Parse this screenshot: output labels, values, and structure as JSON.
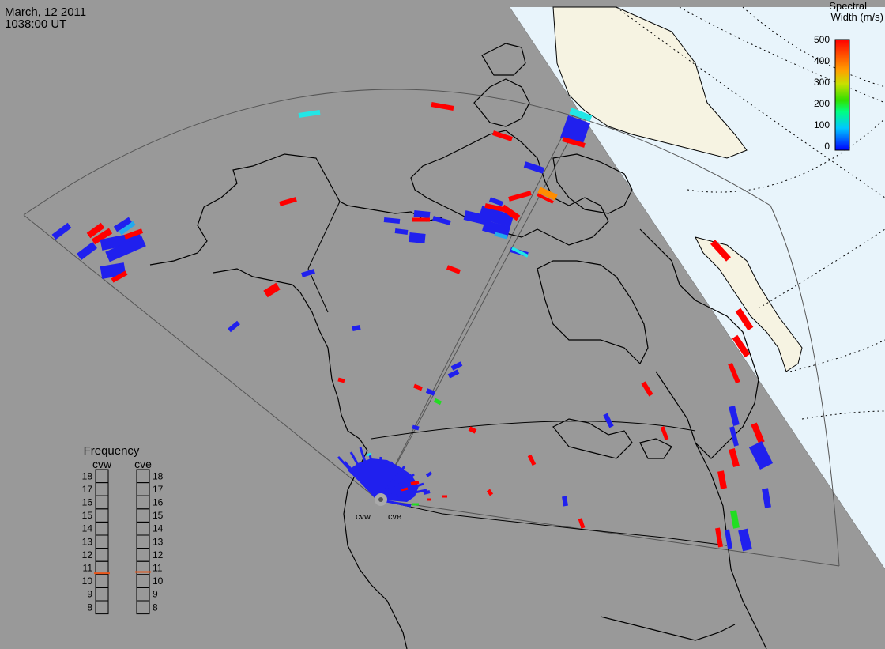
{
  "header": {
    "date": "March, 12 2011",
    "time": "1038:00 UT"
  },
  "colorbar": {
    "title_line1": "Spectral",
    "title_line2": "Width (m/s)",
    "ticks": [
      "500",
      "400",
      "300",
      "200",
      "100",
      "0"
    ]
  },
  "frequency": {
    "title": "Frequency",
    "radars": [
      {
        "name": "cvw",
        "value": 10.6
      },
      {
        "name": "cve",
        "value": 10.7
      }
    ],
    "ticks": [
      "18",
      "17",
      "16",
      "15",
      "14",
      "13",
      "12",
      "11",
      "10",
      "9",
      "8"
    ],
    "marker_color": "#e8561a"
  },
  "sites": [
    {
      "code": "cvw"
    },
    {
      "code": "cve"
    }
  ],
  "colors": {
    "background_gray": "#999999",
    "ocean": "#e8f4fb",
    "ice_land": "#f6f3e2",
    "scatter_blue": "#2020ee",
    "scatter_red": "#ff0000",
    "scatter_cyan": "#22e6e6",
    "scatter_green": "#22dd22",
    "scatter_orange": "#ff8c00"
  }
}
